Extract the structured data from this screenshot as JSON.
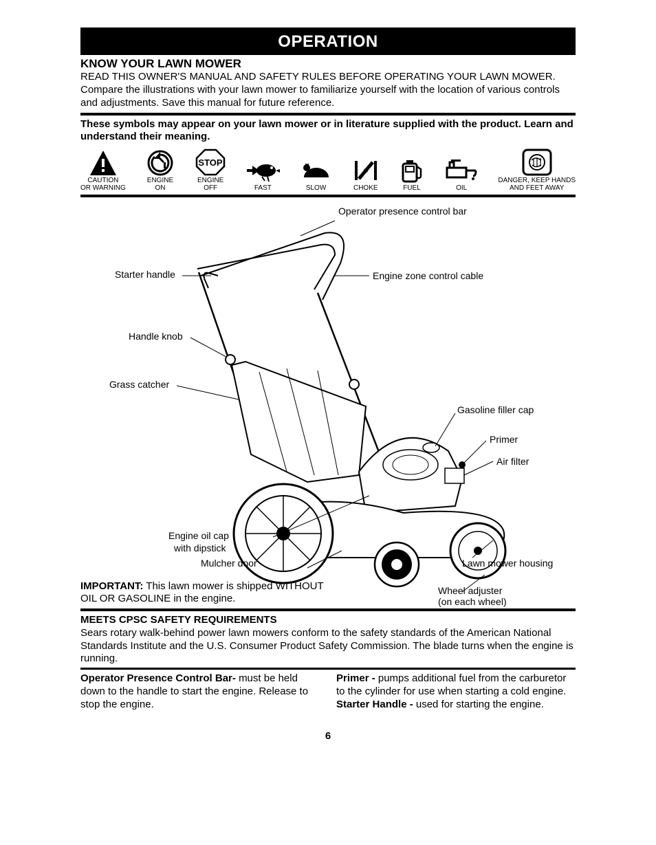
{
  "banner": "OPERATION",
  "section1": {
    "heading": "KNOW YOUR LAWN MOWER",
    "body": "READ THIS OWNER'S MANUAL AND SAFETY RULES BEFORE OPERATING YOUR LAWN MOWER.  Compare the illustrations with your lawn mower to familiarize yourself with the location of various controls and adjustments.  Save this manual for future reference."
  },
  "symbols_intro": "These symbols  may appear on your lawn mower or in literature supplied with the product.  Learn and understand their meaning.",
  "symbols": {
    "caution": {
      "label": "CAUTION\nOR WARNING"
    },
    "engine_on": {
      "label": "ENGINE\nON"
    },
    "stop": {
      "label": "ENGINE\nOFF",
      "word": "STOP"
    },
    "fast": {
      "label": "FAST"
    },
    "slow": {
      "label": "SLOW"
    },
    "choke": {
      "label": "CHOKE"
    },
    "fuel": {
      "label": "FUEL"
    },
    "oil": {
      "label": "OIL"
    },
    "danger": {
      "label": "DANGER, KEEP HANDS\nAND FEET AWAY"
    }
  },
  "diagram_labels": {
    "op_bar": "Operator presence control bar",
    "starter": "Starter handle",
    "knob": "Handle knob",
    "catcher": "Grass catcher",
    "zone_cable": "Engine zone control cable",
    "gas_cap": "Gasoline filler cap",
    "primer": "Primer",
    "air_filter": "Air filter",
    "oil_cap1": "Engine oil cap",
    "oil_cap2": "with dipstick",
    "mulcher": "Mulcher door",
    "housing": "Lawn mower housing",
    "wheel_adj1": "Wheel adjuster",
    "wheel_adj2": "(on each wheel)"
  },
  "important": {
    "lead": "IMPORTANT:",
    "rest": " This lawn mower is shipped WITHOUT OIL OR GASOLINE  in the engine."
  },
  "cpsc": {
    "heading": "MEETS CPSC SAFETY REQUIREMENTS",
    "body": "Sears rotary walk-behind power lawn mowers conform to the safety standards of the American National Standards Institute and the U.S. Consumer Product Safety Commission.  The blade turns when the engine is running."
  },
  "defs": {
    "left": {
      "term": "Operator Presence Control Bar- ",
      "body": "must be held down to the handle to start the engine.  Release to stop the engine."
    },
    "right1": {
      "term": "Primer - ",
      "body": "pumps additional fuel from the carburetor to the cylinder for use when starting a cold engine."
    },
    "right2": {
      "term": "Starter Handle - ",
      "body": "used for starting the engine."
    }
  },
  "page_number": "6",
  "colors": {
    "black": "#000000",
    "white": "#ffffff"
  }
}
